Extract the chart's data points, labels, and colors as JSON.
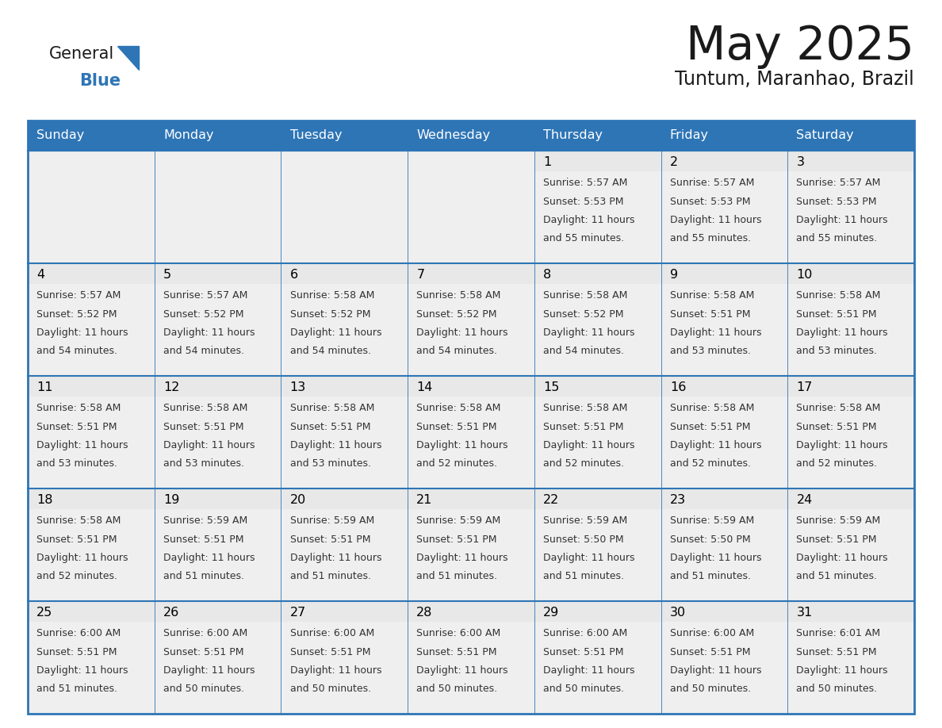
{
  "title": "May 2025",
  "subtitle": "Tuntum, Maranhao, Brazil",
  "days_of_week": [
    "Sunday",
    "Monday",
    "Tuesday",
    "Wednesday",
    "Thursday",
    "Friday",
    "Saturday"
  ],
  "header_bg": "#2E75B6",
  "header_text": "#FFFFFF",
  "cell_bg": "#EFEFEF",
  "day_num_bg": "#E8E8E8",
  "border_color": "#2E75B6",
  "inner_line_color": "#2E75B6",
  "day_number_color": "#000000",
  "info_text_color": "#333333",
  "title_color": "#1a1a1a",
  "subtitle_color": "#1a1a1a",
  "logo_general_color": "#1a1a1a",
  "logo_blue_color": "#2E75B6",
  "weeks": [
    [
      {
        "day": "",
        "sunrise": "",
        "sunset": "",
        "daylight": ""
      },
      {
        "day": "",
        "sunrise": "",
        "sunset": "",
        "daylight": ""
      },
      {
        "day": "",
        "sunrise": "",
        "sunset": "",
        "daylight": ""
      },
      {
        "day": "",
        "sunrise": "",
        "sunset": "",
        "daylight": ""
      },
      {
        "day": "1",
        "sunrise": "5:57 AM",
        "sunset": "5:53 PM",
        "daylight": "11 hours and 55 minutes."
      },
      {
        "day": "2",
        "sunrise": "5:57 AM",
        "sunset": "5:53 PM",
        "daylight": "11 hours and 55 minutes."
      },
      {
        "day": "3",
        "sunrise": "5:57 AM",
        "sunset": "5:53 PM",
        "daylight": "11 hours and 55 minutes."
      }
    ],
    [
      {
        "day": "4",
        "sunrise": "5:57 AM",
        "sunset": "5:52 PM",
        "daylight": "11 hours and 54 minutes."
      },
      {
        "day": "5",
        "sunrise": "5:57 AM",
        "sunset": "5:52 PM",
        "daylight": "11 hours and 54 minutes."
      },
      {
        "day": "6",
        "sunrise": "5:58 AM",
        "sunset": "5:52 PM",
        "daylight": "11 hours and 54 minutes."
      },
      {
        "day": "7",
        "sunrise": "5:58 AM",
        "sunset": "5:52 PM",
        "daylight": "11 hours and 54 minutes."
      },
      {
        "day": "8",
        "sunrise": "5:58 AM",
        "sunset": "5:52 PM",
        "daylight": "11 hours and 54 minutes."
      },
      {
        "day": "9",
        "sunrise": "5:58 AM",
        "sunset": "5:51 PM",
        "daylight": "11 hours and 53 minutes."
      },
      {
        "day": "10",
        "sunrise": "5:58 AM",
        "sunset": "5:51 PM",
        "daylight": "11 hours and 53 minutes."
      }
    ],
    [
      {
        "day": "11",
        "sunrise": "5:58 AM",
        "sunset": "5:51 PM",
        "daylight": "11 hours and 53 minutes."
      },
      {
        "day": "12",
        "sunrise": "5:58 AM",
        "sunset": "5:51 PM",
        "daylight": "11 hours and 53 minutes."
      },
      {
        "day": "13",
        "sunrise": "5:58 AM",
        "sunset": "5:51 PM",
        "daylight": "11 hours and 53 minutes."
      },
      {
        "day": "14",
        "sunrise": "5:58 AM",
        "sunset": "5:51 PM",
        "daylight": "11 hours and 52 minutes."
      },
      {
        "day": "15",
        "sunrise": "5:58 AM",
        "sunset": "5:51 PM",
        "daylight": "11 hours and 52 minutes."
      },
      {
        "day": "16",
        "sunrise": "5:58 AM",
        "sunset": "5:51 PM",
        "daylight": "11 hours and 52 minutes."
      },
      {
        "day": "17",
        "sunrise": "5:58 AM",
        "sunset": "5:51 PM",
        "daylight": "11 hours and 52 minutes."
      }
    ],
    [
      {
        "day": "18",
        "sunrise": "5:58 AM",
        "sunset": "5:51 PM",
        "daylight": "11 hours and 52 minutes."
      },
      {
        "day": "19",
        "sunrise": "5:59 AM",
        "sunset": "5:51 PM",
        "daylight": "11 hours and 51 minutes."
      },
      {
        "day": "20",
        "sunrise": "5:59 AM",
        "sunset": "5:51 PM",
        "daylight": "11 hours and 51 minutes."
      },
      {
        "day": "21",
        "sunrise": "5:59 AM",
        "sunset": "5:51 PM",
        "daylight": "11 hours and 51 minutes."
      },
      {
        "day": "22",
        "sunrise": "5:59 AM",
        "sunset": "5:50 PM",
        "daylight": "11 hours and 51 minutes."
      },
      {
        "day": "23",
        "sunrise": "5:59 AM",
        "sunset": "5:50 PM",
        "daylight": "11 hours and 51 minutes."
      },
      {
        "day": "24",
        "sunrise": "5:59 AM",
        "sunset": "5:51 PM",
        "daylight": "11 hours and 51 minutes."
      }
    ],
    [
      {
        "day": "25",
        "sunrise": "6:00 AM",
        "sunset": "5:51 PM",
        "daylight": "11 hours and 51 minutes."
      },
      {
        "day": "26",
        "sunrise": "6:00 AM",
        "sunset": "5:51 PM",
        "daylight": "11 hours and 50 minutes."
      },
      {
        "day": "27",
        "sunrise": "6:00 AM",
        "sunset": "5:51 PM",
        "daylight": "11 hours and 50 minutes."
      },
      {
        "day": "28",
        "sunrise": "6:00 AM",
        "sunset": "5:51 PM",
        "daylight": "11 hours and 50 minutes."
      },
      {
        "day": "29",
        "sunrise": "6:00 AM",
        "sunset": "5:51 PM",
        "daylight": "11 hours and 50 minutes."
      },
      {
        "day": "30",
        "sunrise": "6:00 AM",
        "sunset": "5:51 PM",
        "daylight": "11 hours and 50 minutes."
      },
      {
        "day": "31",
        "sunrise": "6:01 AM",
        "sunset": "5:51 PM",
        "daylight": "11 hours and 50 minutes."
      }
    ]
  ]
}
